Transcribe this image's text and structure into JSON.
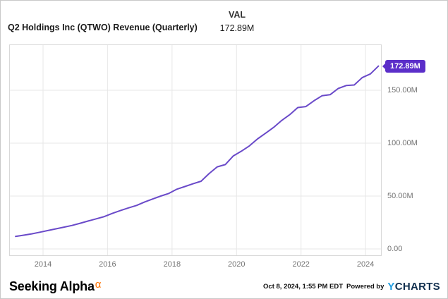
{
  "header": {
    "title": "Q2 Holdings Inc (QTWO) Revenue (Quarterly)",
    "val_label": "VAL",
    "val_value": "172.89M"
  },
  "chart_data": {
    "type": "line",
    "title": "Q2 Holdings Inc (QTWO) Revenue (Quarterly)",
    "series_name": "Revenue (Quarterly)",
    "unit": "USD millions",
    "x_unit": "decimal_year",
    "x": [
      2013.15,
      2013.4,
      2013.65,
      2013.9,
      2014.15,
      2014.4,
      2014.65,
      2014.9,
      2015.15,
      2015.4,
      2015.65,
      2015.9,
      2016.15,
      2016.4,
      2016.65,
      2016.9,
      2017.15,
      2017.4,
      2017.65,
      2017.9,
      2018.15,
      2018.4,
      2018.65,
      2018.9,
      2019.15,
      2019.4,
      2019.65,
      2019.9,
      2020.15,
      2020.4,
      2020.65,
      2020.9,
      2021.15,
      2021.4,
      2021.65,
      2021.9,
      2022.15,
      2022.4,
      2022.65,
      2022.9,
      2023.15,
      2023.4,
      2023.65,
      2023.9,
      2024.15,
      2024.4
    ],
    "values": [
      11.8,
      13.0,
      14.3,
      15.8,
      17.4,
      19.0,
      20.6,
      22.2,
      24.3,
      26.4,
      28.5,
      30.6,
      33.6,
      36.3,
      38.8,
      41.1,
      44.4,
      47.2,
      50.0,
      52.5,
      56.5,
      59.0,
      61.6,
      64.0,
      71.3,
      77.6,
      79.7,
      87.9,
      92.4,
      97.5,
      104.0,
      109.4,
      114.9,
      121.5,
      126.9,
      133.7,
      134.6,
      140.1,
      144.8,
      145.8,
      151.7,
      154.5,
      155.0,
      162.1,
      165.5,
      172.89
    ],
    "x_ticks": [
      {
        "value": 2014,
        "label": "2014"
      },
      {
        "value": 2016,
        "label": "2016"
      },
      {
        "value": 2018,
        "label": "2018"
      },
      {
        "value": 2020,
        "label": "2020"
      },
      {
        "value": 2022,
        "label": "2022"
      },
      {
        "value": 2024,
        "label": "2024"
      }
    ],
    "y_ticks": [
      {
        "value": 0,
        "label": "0.00"
      },
      {
        "value": 50,
        "label": "50.00M"
      },
      {
        "value": 100,
        "label": "100.00M"
      },
      {
        "value": 150,
        "label": "150.00M"
      }
    ],
    "xlim": [
      2012.95,
      2024.5
    ],
    "ylim": [
      0,
      193
    ],
    "grid": true,
    "legend_position": "none",
    "end_label": "172.89M"
  },
  "colors": {
    "line": "#6a4ac9",
    "badge_bg": "#5b2ec9",
    "grid": "#e7e7e7",
    "plot_border": "#d8d8d8",
    "tick_text": "#737373",
    "sa_alpha_orange": "#ff7200",
    "ycharts_blue": "#1f9ce0",
    "ycharts_navy": "#12304f"
  },
  "footer": {
    "brand": "Seeking Alpha",
    "brand_alpha": "α",
    "timestamp": "Oct 8, 2024, 1:55 PM EDT",
    "powered_by": "Powered by",
    "ycharts_y": "Y",
    "ycharts_charts": "CHARTS"
  }
}
